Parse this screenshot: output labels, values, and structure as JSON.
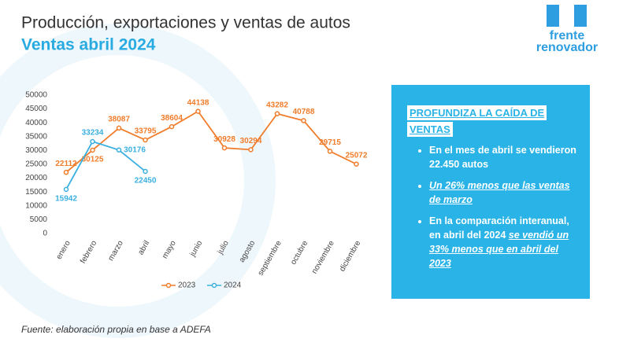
{
  "chart_data": {
    "type": "line",
    "title": "Producción, exportaciones y ventas de autos",
    "subtitle": "Ventas abril 2024",
    "categories": [
      "enero",
      "febrero",
      "marzo",
      "abril",
      "mayo",
      "junio",
      "julio",
      "agosto",
      "septiembre",
      "octubre",
      "noviembre",
      "diciembre"
    ],
    "series": [
      {
        "name": "2023",
        "color": "#f07c2a",
        "values": [
          22112,
          30125,
          38087,
          33795,
          38604,
          44138,
          30928,
          30294,
          43282,
          40788,
          29715,
          25072
        ]
      },
      {
        "name": "2024",
        "color": "#3bb0e0",
        "values": [
          15942,
          33234,
          30176,
          22450,
          null,
          null,
          null,
          null,
          null,
          null,
          null,
          null
        ]
      }
    ],
    "ylim": [
      0,
      50000
    ],
    "yticks": [
      0,
      5000,
      10000,
      15000,
      20000,
      25000,
      30000,
      35000,
      40000,
      45000,
      50000
    ],
    "grid": false,
    "legend": "bottom"
  },
  "logo": {
    "line1": "frente",
    "line2": "renovador"
  },
  "panel": {
    "heading": [
      "PROFUNDIZA LA CAÍDA DE",
      "VENTAS"
    ],
    "bullets": [
      [
        {
          "text": "En el mes de abril se vendieron 22.450 autos",
          "style": "bold"
        }
      ],
      [
        {
          "text": "Un 26% menos que las ventas de marzo",
          "style": "emph"
        }
      ],
      [
        {
          "text": "En la comparación interanual, en abril del 2024 ",
          "style": "bold"
        },
        {
          "text": "se vendió un 33% menos que en abril del 2023",
          "style": "emph"
        }
      ]
    ]
  },
  "source": "Fuente: elaboración propia en base a ADEFA"
}
